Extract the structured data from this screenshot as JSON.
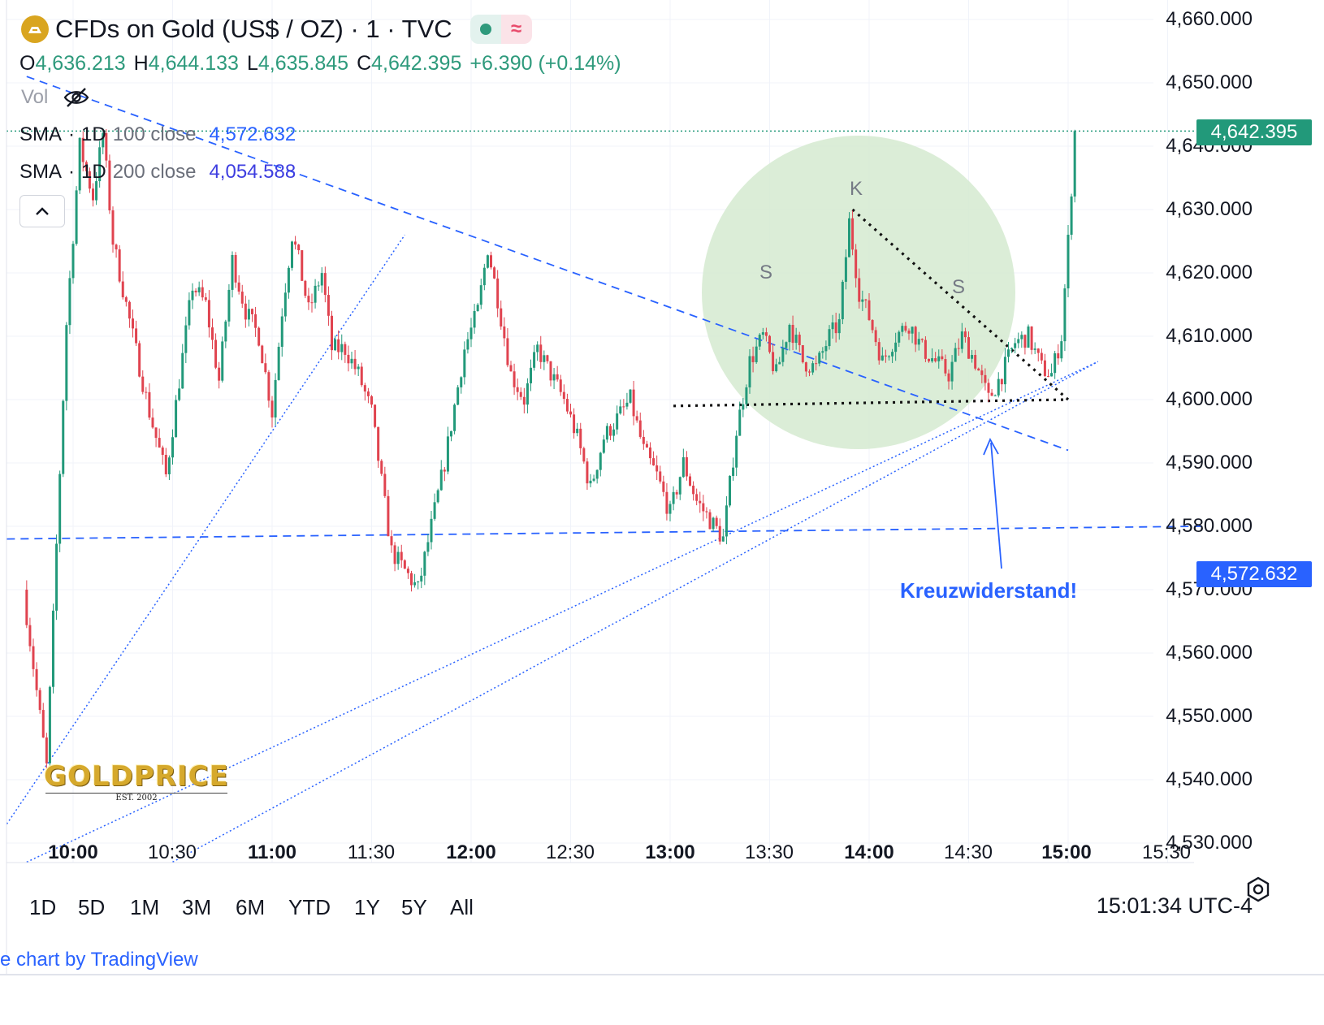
{
  "header": {
    "title": "CFDs on Gold (US$ / OZ) · 1 · TVC",
    "status_wave": "≈",
    "ohlc": {
      "o_label": "O",
      "o": "4,636.213",
      "h_label": "H",
      "h": "4,644.133",
      "l_label": "L",
      "l": "4,635.845",
      "c_label": "C",
      "c": "4,642.395",
      "change": "+6.390 (+0.14%)"
    },
    "vol_label": "Vol"
  },
  "indicators": [
    {
      "name": "SMA",
      "interval": "1D",
      "params": "100 close",
      "value": "4,572.632",
      "color": "#2962ff"
    },
    {
      "name": "SMA",
      "interval": "1D",
      "params": "200 close",
      "value": "4,054.588",
      "color": "#3e3ee0"
    }
  ],
  "price_axis": {
    "labels": [
      "4,660.000",
      "4,650.000",
      "4,640.000",
      "4,630.000",
      "4,620.000",
      "4,610.000",
      "4,600.000",
      "4,590.000",
      "4,580.000",
      "4,570.000",
      "4,560.000",
      "4,550.000",
      "4,540.000",
      "4,530.000"
    ],
    "last_price_tag": "4,642.395",
    "sma_tag": "4,572.632",
    "last_price_color": "#22997a",
    "sma_tag_color": "#2962ff"
  },
  "time_axis": {
    "labels": [
      {
        "text": "10:00",
        "bold": true
      },
      {
        "text": "10:30",
        "bold": false
      },
      {
        "text": "11:00",
        "bold": true
      },
      {
        "text": "11:30",
        "bold": false
      },
      {
        "text": "12:00",
        "bold": true
      },
      {
        "text": "12:30",
        "bold": false
      },
      {
        "text": "13:00",
        "bold": true
      },
      {
        "text": "13:30",
        "bold": false
      },
      {
        "text": "14:00",
        "bold": true
      },
      {
        "text": "14:30",
        "bold": false
      },
      {
        "text": "15:00",
        "bold": true
      },
      {
        "text": "15:30",
        "bold": false
      }
    ]
  },
  "range_buttons": [
    "1D",
    "5D",
    "1M",
    "3M",
    "6M",
    "YTD",
    "1Y",
    "5Y",
    "All"
  ],
  "clock": "15:01:34 UTC-4",
  "footer": "e chart by TradingView",
  "annotations": {
    "s_left": "S",
    "k": "K",
    "s_right": "S",
    "arrow_text": "Kreuzwiderstand!"
  },
  "watermark": {
    "main": "GOLDPRICE",
    "sub": "EST. 2002"
  },
  "colors": {
    "up": "#22997a",
    "down": "#e0434f",
    "trend": "#2962ff",
    "highlight": "#d5ead0"
  },
  "chart_data": {
    "type": "candlestick",
    "x_range": [
      "09:40",
      "15:40"
    ],
    "ylim": [
      4525,
      4662
    ],
    "anchors": [
      [
        "09:45",
        4570
      ],
      [
        "09:52",
        4542
      ],
      [
        "09:58",
        4612
      ],
      [
        "10:02",
        4640
      ],
      [
        "10:06",
        4632
      ],
      [
        "10:09",
        4642
      ],
      [
        "10:12",
        4625
      ],
      [
        "10:18",
        4610
      ],
      [
        "10:23",
        4598
      ],
      [
        "10:28",
        4588
      ],
      [
        "10:32",
        4603
      ],
      [
        "10:36",
        4618
      ],
      [
        "10:40",
        4615
      ],
      [
        "10:44",
        4603
      ],
      [
        "10:48",
        4622
      ],
      [
        "10:52",
        4614
      ],
      [
        "10:56",
        4610
      ],
      [
        "11:00",
        4598
      ],
      [
        "11:03",
        4614
      ],
      [
        "11:06",
        4626
      ],
      [
        "11:08",
        4622
      ],
      [
        "11:11",
        4614
      ],
      [
        "11:15",
        4620
      ],
      [
        "11:18",
        4608
      ],
      [
        "11:22",
        4608
      ],
      [
        "11:26",
        4604
      ],
      [
        "11:30",
        4598
      ],
      [
        "11:36",
        4576
      ],
      [
        "11:40",
        4573
      ],
      [
        "11:44",
        4570
      ],
      [
        "11:48",
        4580
      ],
      [
        "11:52",
        4590
      ],
      [
        "11:58",
        4608
      ],
      [
        "12:02",
        4614
      ],
      [
        "12:05",
        4624
      ],
      [
        "12:08",
        4616
      ],
      [
        "12:12",
        4604
      ],
      [
        "12:16",
        4600
      ],
      [
        "12:20",
        4608
      ],
      [
        "12:24",
        4604
      ],
      [
        "12:28",
        4600
      ],
      [
        "12:32",
        4594
      ],
      [
        "12:36",
        4586
      ],
      [
        "12:40",
        4594
      ],
      [
        "12:44",
        4597
      ],
      [
        "12:48",
        4600
      ],
      [
        "12:52",
        4592
      ],
      [
        "12:56",
        4588
      ],
      [
        "13:00",
        4582
      ],
      [
        "13:04",
        4590
      ],
      [
        "13:08",
        4584
      ],
      [
        "13:12",
        4581
      ],
      [
        "13:16",
        4578
      ],
      [
        "13:20",
        4595
      ],
      [
        "13:24",
        4606
      ],
      [
        "13:28",
        4610
      ],
      [
        "13:32",
        4604
      ],
      [
        "13:36",
        4612
      ],
      [
        "13:40",
        4606
      ],
      [
        "13:44",
        4605
      ],
      [
        "13:48",
        4610
      ],
      [
        "13:51",
        4612
      ],
      [
        "13:54",
        4628
      ],
      [
        "13:57",
        4617
      ],
      [
        "14:00",
        4613
      ],
      [
        "14:04",
        4606
      ],
      [
        "14:08",
        4610
      ],
      [
        "14:12",
        4612
      ],
      [
        "14:16",
        4608
      ],
      [
        "14:20",
        4606
      ],
      [
        "14:24",
        4604
      ],
      [
        "14:28",
        4610
      ],
      [
        "14:32",
        4606
      ],
      [
        "14:36",
        4600
      ],
      [
        "14:40",
        4604
      ],
      [
        "14:44",
        4609
      ],
      [
        "14:48",
        4610
      ],
      [
        "14:52",
        4605
      ],
      [
        "14:55",
        4604
      ],
      [
        "14:58",
        4610
      ],
      [
        "15:00",
        4625
      ],
      [
        "15:02",
        4642
      ]
    ],
    "last_close": 4642.395,
    "drawings": {
      "upper_trendline_dashed": [
        [
          "09:46",
          4651
        ],
        [
          "15:00",
          4592
        ]
      ],
      "support_dashed": [
        [
          "09:40",
          4578
        ],
        [
          "15:40",
          4580
        ]
      ],
      "lower_trendline_dotted_1": [
        [
          "09:40",
          4533
        ],
        [
          "11:40",
          4626
        ]
      ],
      "lower_trendline_dotted_2": [
        [
          "09:46",
          4527
        ],
        [
          "15:09",
          4606
        ]
      ],
      "lower_trendline_dotted_3": [
        [
          "10:30",
          4527
        ],
        [
          "15:09",
          4606
        ]
      ],
      "neckline_dotted": [
        [
          "13:01",
          4599
        ],
        [
          "15:00",
          4600
        ]
      ],
      "head_shoulder_line_dotted": [
        [
          "13:55",
          4630
        ],
        [
          "15:00",
          4600
        ]
      ]
    }
  }
}
